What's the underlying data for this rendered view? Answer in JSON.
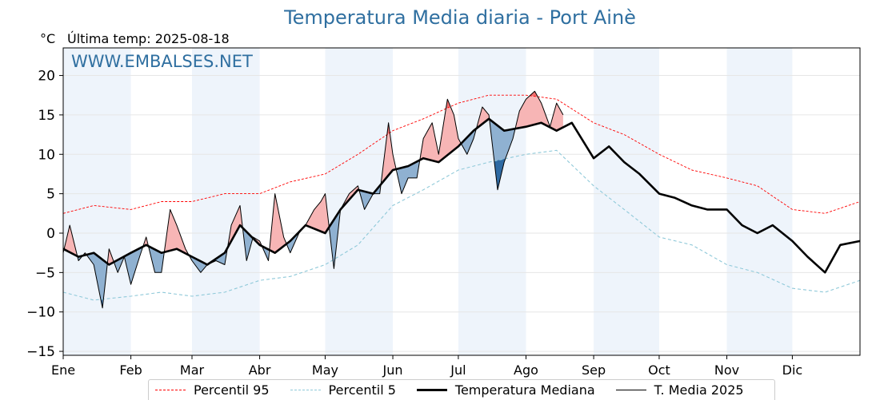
{
  "title": "Temperatura Media diaria - Port Ainè",
  "units_label": "°C",
  "last_temp": "Última temp: 2025-08-18",
  "watermark": "WWW.EMBALSES.NET",
  "colors": {
    "title": "#2f6fa0",
    "watermark": "#2f6fa0",
    "p95": "#ff0000",
    "p5": "#8fc9d9",
    "median": "#000000",
    "current": "#000000",
    "above_fill": "#f7b5b5",
    "above_strong": "#f07070",
    "below_fill": "#8fb1d1",
    "below_strong": "#2e6aa3",
    "shaded_month": "#eef4fb"
  },
  "chart_data": {
    "type": "line",
    "title": "Temperatura Media diaria - Port Ainè",
    "ylabel": "°C",
    "ylim": [
      -15.5,
      23.5
    ],
    "xlim": [
      1,
      366
    ],
    "grid": true,
    "legend_position": "bottom",
    "y_ticks": [
      -15,
      -10,
      -5,
      0,
      5,
      10,
      15,
      20
    ],
    "y_tick_labels": [
      "−15",
      "−10",
      "−5",
      "0",
      "5",
      "10",
      "15",
      "20"
    ],
    "months": [
      "Ene",
      "Feb",
      "Mar",
      "Abr",
      "May",
      "Jun",
      "Jul",
      "Ago",
      "Sep",
      "Oct",
      "Nov",
      "Dic"
    ],
    "month_start_days": [
      1,
      32,
      60,
      91,
      121,
      152,
      182,
      213,
      244,
      274,
      305,
      335
    ],
    "shaded_months": [
      "Ene",
      "Mar",
      "May",
      "Jul",
      "Sep",
      "Nov"
    ],
    "x_unit": "day of year",
    "series": [
      {
        "name": "Percentil 95",
        "style": "dashed-thin",
        "x": [
          1,
          15,
          32,
          46,
          60,
          75,
          91,
          105,
          121,
          136,
          152,
          166,
          182,
          196,
          213,
          227,
          244,
          258,
          274,
          289,
          305,
          319,
          335,
          350,
          366
        ],
        "values": [
          2.5,
          3.5,
          3.0,
          4.0,
          4.0,
          5.0,
          5.0,
          6.5,
          7.5,
          10.0,
          13.0,
          14.5,
          16.5,
          17.5,
          17.5,
          17.0,
          14.0,
          12.5,
          10.0,
          8.0,
          7.0,
          6.0,
          3.0,
          2.5,
          4.0
        ]
      },
      {
        "name": "Percentil 5",
        "style": "dashed-thin",
        "x": [
          1,
          15,
          32,
          46,
          60,
          75,
          91,
          105,
          121,
          136,
          152,
          166,
          182,
          196,
          213,
          227,
          244,
          258,
          274,
          289,
          305,
          319,
          335,
          350,
          366
        ],
        "values": [
          -7.5,
          -8.5,
          -8.0,
          -7.5,
          -8.0,
          -7.5,
          -6.0,
          -5.5,
          -4.0,
          -1.5,
          3.5,
          5.5,
          8.0,
          9.0,
          10.0,
          10.5,
          6.0,
          3.0,
          -0.5,
          -1.5,
          -4.0,
          -5.0,
          -7.0,
          -7.5,
          -6.0
        ]
      },
      {
        "name": "Temperatura Mediana",
        "style": "solid-thick",
        "x": [
          1,
          8,
          15,
          22,
          32,
          39,
          46,
          53,
          60,
          67,
          75,
          82,
          91,
          98,
          105,
          112,
          121,
          128,
          136,
          143,
          152,
          159,
          166,
          173,
          182,
          189,
          196,
          203,
          213,
          220,
          227,
          234,
          244,
          251,
          258,
          265,
          274,
          281,
          289,
          296,
          305,
          312,
          319,
          326,
          335,
          342,
          350,
          357,
          366
        ],
        "values": [
          -2.0,
          -3.0,
          -2.5,
          -4.0,
          -2.5,
          -1.5,
          -2.5,
          -2.0,
          -3.0,
          -4.0,
          -2.5,
          1.0,
          -1.5,
          -2.5,
          -1.0,
          1.0,
          0.0,
          3.0,
          5.5,
          5.0,
          8.0,
          8.5,
          9.5,
          9.0,
          11.0,
          13.0,
          14.5,
          13.0,
          13.5,
          14.0,
          13.0,
          14.0,
          9.5,
          11.0,
          9.0,
          7.5,
          5.0,
          4.5,
          3.5,
          3.0,
          3.0,
          1.0,
          0.0,
          1.0,
          -1.0,
          -3.0,
          -5.0,
          -1.5,
          -1.0
        ]
      },
      {
        "name": "T. Media 2025",
        "style": "solid-thin",
        "x": [
          1,
          4,
          8,
          11,
          15,
          19,
          22,
          26,
          29,
          32,
          36,
          39,
          43,
          46,
          50,
          53,
          57,
          60,
          64,
          67,
          71,
          75,
          78,
          82,
          85,
          88,
          91,
          95,
          98,
          102,
          105,
          109,
          112,
          116,
          119,
          121,
          125,
          128,
          132,
          136,
          139,
          143,
          146,
          150,
          152,
          156,
          159,
          163,
          166,
          170,
          173,
          177,
          180,
          182,
          186,
          189,
          193,
          196,
          200,
          203,
          207,
          210,
          213,
          217,
          220,
          224,
          227,
          230
        ],
        "values": [
          -2.5,
          1.0,
          -3.5,
          -2.5,
          -4.0,
          -9.5,
          -2.0,
          -5.0,
          -3.0,
          -6.5,
          -3.0,
          -0.5,
          -5.0,
          -5.0,
          3.0,
          1.0,
          -2.0,
          -3.5,
          -5.0,
          -4.0,
          -3.5,
          -4.0,
          1.0,
          3.5,
          -3.5,
          -0.5,
          -1.0,
          -3.5,
          5.0,
          -0.5,
          -2.5,
          0.0,
          1.0,
          3.0,
          4.0,
          5.0,
          -4.5,
          3.0,
          5.0,
          6.0,
          3.0,
          5.0,
          5.0,
          14.0,
          10.0,
          5.0,
          7.0,
          7.0,
          12.0,
          14.0,
          10.0,
          17.0,
          15.0,
          12.0,
          10.0,
          12.0,
          16.0,
          15.0,
          5.5,
          9.0,
          12.0,
          15.5,
          17.0,
          18.0,
          16.5,
          13.5,
          16.5,
          15.0
        ]
      }
    ]
  },
  "legend": {
    "items": [
      {
        "label": "Percentil 95"
      },
      {
        "label": "Percentil 5"
      },
      {
        "label": "Temperatura Mediana"
      },
      {
        "label": "T. Media 2025"
      }
    ]
  }
}
